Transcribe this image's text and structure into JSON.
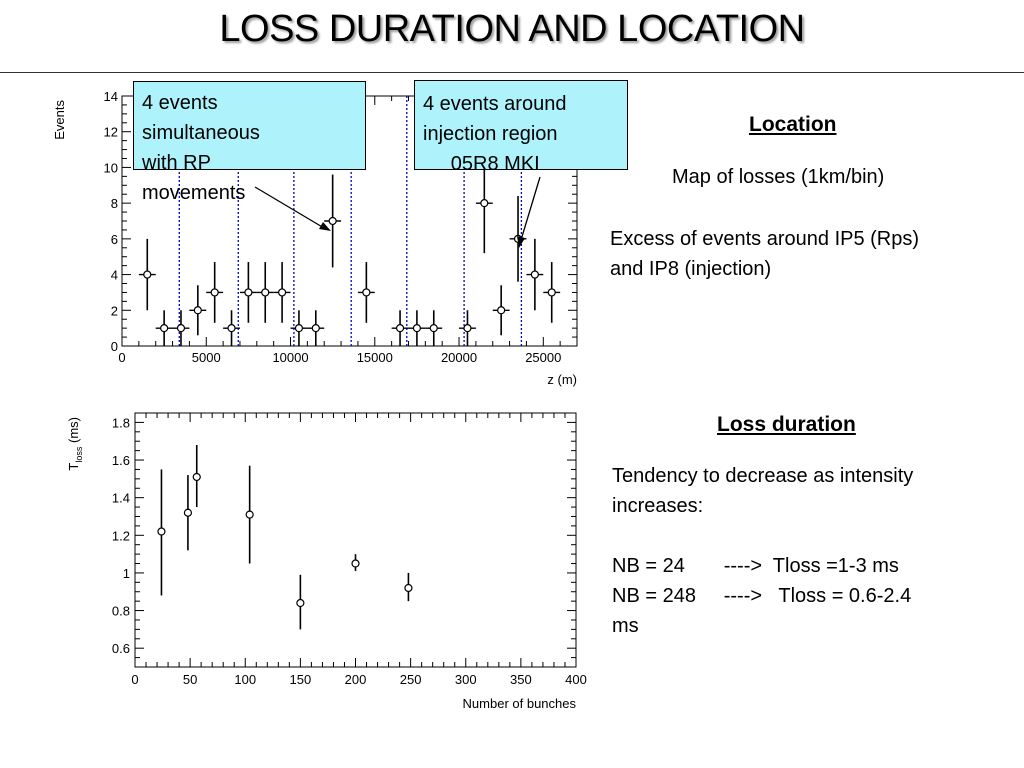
{
  "title": "LOSS DURATION AND LOCATION",
  "callouts": [
    {
      "lines": [
        "4 events",
        "simultaneous",
        "with RP",
        "movements"
      ]
    },
    {
      "lines": [
        "4 events around",
        "injection region",
        "     05R8 MKI"
      ]
    }
  ],
  "location": {
    "heading": "Location",
    "map_text": "Map of losses (1km/bin)",
    "excess_lines": [
      "Excess of events around IP5 (Rps)",
      "and IP8 (injection)"
    ]
  },
  "loss_duration": {
    "heading": "Loss duration",
    "lines": [
      "Tendency to decrease as intensity",
      "increases:",
      "",
      "NB = 24       ---->  Tloss =1-3 ms",
      "NB = 248     ---->   Tloss = 0.6-2.4",
      "ms"
    ]
  },
  "colors": {
    "callout_fill": "#aef3fb",
    "marker_line": "#0000cc"
  },
  "chart_data": [
    {
      "type": "scatter",
      "xlabel": "z (m)",
      "ylabel": "Events",
      "xlim": [
        0,
        27000
      ],
      "ylim": [
        0,
        14
      ],
      "xticks": [
        0,
        5000,
        10000,
        15000,
        20000,
        25000
      ],
      "yticks": [
        0,
        2,
        4,
        6,
        8,
        10,
        12,
        14
      ],
      "bin_width": 1000,
      "points": [
        {
          "x": 1500,
          "y": 4,
          "err": 2
        },
        {
          "x": 2500,
          "y": 1,
          "err": 1
        },
        {
          "x": 3500,
          "y": 1,
          "err": 1
        },
        {
          "x": 4500,
          "y": 2,
          "err": 1.4
        },
        {
          "x": 5500,
          "y": 3,
          "err": 1.7
        },
        {
          "x": 6500,
          "y": 1,
          "err": 1
        },
        {
          "x": 7500,
          "y": 3,
          "err": 1.7
        },
        {
          "x": 8500,
          "y": 3,
          "err": 1.7
        },
        {
          "x": 9500,
          "y": 3,
          "err": 1.7
        },
        {
          "x": 10500,
          "y": 1,
          "err": 1
        },
        {
          "x": 11500,
          "y": 1,
          "err": 1
        },
        {
          "x": 12500,
          "y": 7,
          "err": 2.6
        },
        {
          "x": 14500,
          "y": 3,
          "err": 1.7
        },
        {
          "x": 16500,
          "y": 1,
          "err": 1
        },
        {
          "x": 17500,
          "y": 1,
          "err": 1
        },
        {
          "x": 18500,
          "y": 1,
          "err": 1
        },
        {
          "x": 20500,
          "y": 1,
          "err": 1
        },
        {
          "x": 21500,
          "y": 8,
          "err": 2.8
        },
        {
          "x": 22500,
          "y": 2,
          "err": 1.4
        },
        {
          "x": 23500,
          "y": 6,
          "err": 2.4
        },
        {
          "x": 24500,
          "y": 4,
          "err": 2
        },
        {
          "x": 25500,
          "y": 3,
          "err": 1.7
        }
      ],
      "vertical_lines": [
        3400,
        6900,
        10200,
        13600,
        16900,
        20300,
        23700
      ]
    },
    {
      "type": "scatter",
      "xlabel": "Number of bunches",
      "ylabel_main": "T",
      "ylabel_sub": "loss",
      "ylabel_unit": " (ms)",
      "xlim": [
        0,
        400
      ],
      "ylim": [
        0.5,
        1.85
      ],
      "xticks": [
        0,
        50,
        100,
        150,
        200,
        250,
        300,
        350,
        400
      ],
      "yticks": [
        0.6,
        0.8,
        1,
        1.2,
        1.4,
        1.6,
        1.8
      ],
      "points": [
        {
          "x": 24,
          "y": 1.22,
          "lo": 0.88,
          "hi": 1.55
        },
        {
          "x": 48,
          "y": 1.32,
          "lo": 1.12,
          "hi": 1.52
        },
        {
          "x": 56,
          "y": 1.51,
          "lo": 1.35,
          "hi": 1.68
        },
        {
          "x": 104,
          "y": 1.31,
          "lo": 1.05,
          "hi": 1.57
        },
        {
          "x": 150,
          "y": 0.84,
          "lo": 0.7,
          "hi": 0.99
        },
        {
          "x": 200,
          "y": 1.05,
          "lo": 1.01,
          "hi": 1.1
        },
        {
          "x": 248,
          "y": 0.92,
          "lo": 0.85,
          "hi": 1.0
        }
      ]
    }
  ]
}
